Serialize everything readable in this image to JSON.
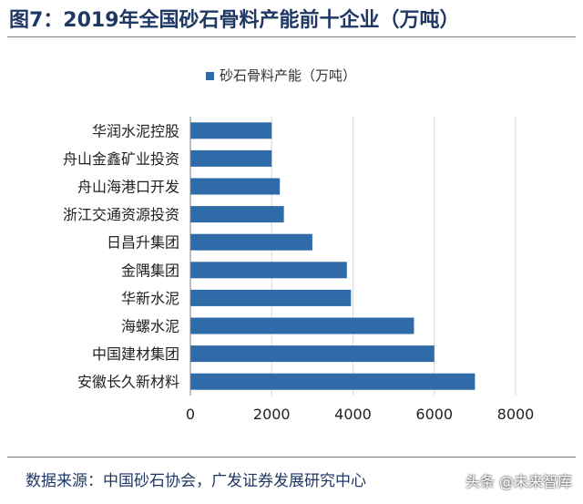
{
  "title": "图7：2019年全国砂石骨料产能前十企业（万吨）",
  "source": "数据来源：中国砂石协会，广发证券发展研究中心",
  "watermark": "头条 @未来智库",
  "colors": {
    "bar": "#2e6ba8",
    "grid": "#d9d9d9",
    "axis": "#7f7f7f",
    "title": "#1f3864"
  },
  "chart_data": {
    "type": "bar",
    "orientation": "horizontal",
    "title": "",
    "xlabel": "",
    "ylabel": "",
    "legend": {
      "position": "top",
      "entries": [
        "砂石骨料产能（万吨）"
      ]
    },
    "categories": [
      "华润水泥控股",
      "舟山金鑫矿业投资",
      "舟山海港口开发",
      "浙江交通资源投资",
      "日昌升集团",
      "金隅集团",
      "华新水泥",
      "海螺水泥",
      "中国建材集团",
      "安徽长久新材料"
    ],
    "series": [
      {
        "name": "砂石骨料产能（万吨）",
        "values": [
          2000,
          2000,
          2200,
          2300,
          3000,
          3850,
          3950,
          5500,
          6000,
          7000
        ]
      }
    ],
    "xlim": [
      0,
      8000
    ],
    "xticks": [
      0,
      2000,
      4000,
      6000,
      8000
    ],
    "grid": true
  }
}
